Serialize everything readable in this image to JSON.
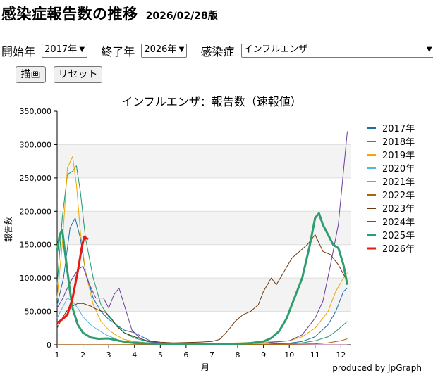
{
  "header": {
    "title": "感染症報告数の推移",
    "date": "2026/02/28版"
  },
  "controls": {
    "start_label": "開始年",
    "start_value": "2017年",
    "end_label": "終了年",
    "end_value": "2026年",
    "disease_label": "感染症",
    "disease_value": "インフルエンザ",
    "draw_button": "描画",
    "reset_button": "リセット"
  },
  "footer": {
    "credit": "produced by JpGraph"
  },
  "colors": {
    "band": "#f3f3f3",
    "axis": "#000000"
  },
  "chart_data": {
    "type": "line",
    "title": "インフルエンザ：報告数（速報値）",
    "xlabel": "月",
    "ylabel": "報告数",
    "xlim": [
      1,
      12.4
    ],
    "ylim": [
      0,
      350000
    ],
    "x_ticks": [
      "1",
      "2",
      "3",
      "4",
      "5",
      "6",
      "7",
      "8",
      "9",
      "10",
      "11",
      "12"
    ],
    "y_ticks": [
      "0",
      "50,000",
      "100,000",
      "150,000",
      "200,000",
      "250,000",
      "300,000",
      "350,000"
    ],
    "grid": "alternating horizontal bands",
    "legend_position": "right",
    "series": [
      {
        "name": "2017年",
        "color": "#1a6fa8",
        "width": 1,
        "points": [
          [
            1,
            60000
          ],
          [
            1.25,
            100000
          ],
          [
            1.5,
            175000
          ],
          [
            1.7,
            190000
          ],
          [
            1.9,
            160000
          ],
          [
            2.1,
            110000
          ],
          [
            2.4,
            70000
          ],
          [
            2.7,
            50000
          ],
          [
            3,
            38000
          ],
          [
            3.3,
            30000
          ],
          [
            3.6,
            22000
          ],
          [
            4,
            18000
          ],
          [
            4.3,
            12000
          ],
          [
            4.6,
            6000
          ],
          [
            5,
            2500
          ],
          [
            6,
            1000
          ],
          [
            7,
            600
          ],
          [
            8,
            500
          ],
          [
            9,
            800
          ],
          [
            10,
            2500
          ],
          [
            10.5,
            5000
          ],
          [
            11,
            12000
          ],
          [
            11.5,
            30000
          ],
          [
            11.8,
            50000
          ],
          [
            12.1,
            80000
          ],
          [
            12.25,
            85000
          ]
        ]
      },
      {
        "name": "2018年",
        "color": "#1a9a6c",
        "width": 1,
        "points": [
          [
            1,
            90000
          ],
          [
            1.2,
            190000
          ],
          [
            1.4,
            255000
          ],
          [
            1.6,
            260000
          ],
          [
            1.75,
            268000
          ],
          [
            1.9,
            230000
          ],
          [
            2.1,
            160000
          ],
          [
            2.4,
            100000
          ],
          [
            2.7,
            60000
          ],
          [
            3,
            42000
          ],
          [
            3.3,
            30000
          ],
          [
            3.6,
            18000
          ],
          [
            4,
            10000
          ],
          [
            4.5,
            5000
          ],
          [
            5,
            2500
          ],
          [
            6,
            1000
          ],
          [
            7,
            600
          ],
          [
            8,
            500
          ],
          [
            9,
            600
          ],
          [
            10,
            1500
          ],
          [
            10.5,
            3000
          ],
          [
            11,
            6000
          ],
          [
            11.5,
            12000
          ],
          [
            11.8,
            20000
          ],
          [
            12.25,
            35000
          ]
        ]
      },
      {
        "name": "2019年",
        "color": "#f0a500",
        "width": 1,
        "points": [
          [
            1,
            70000
          ],
          [
            1.2,
            150000
          ],
          [
            1.4,
            265000
          ],
          [
            1.6,
            282000
          ],
          [
            1.75,
            240000
          ],
          [
            1.9,
            170000
          ],
          [
            2.1,
            110000
          ],
          [
            2.4,
            60000
          ],
          [
            2.7,
            35000
          ],
          [
            3,
            22000
          ],
          [
            3.3,
            14000
          ],
          [
            3.6,
            8000
          ],
          [
            4,
            5000
          ],
          [
            4.5,
            3000
          ],
          [
            5,
            2000
          ],
          [
            6,
            1500
          ],
          [
            7,
            1500
          ],
          [
            8,
            3000
          ],
          [
            9,
            4000
          ],
          [
            10,
            6000
          ],
          [
            10.5,
            12000
          ],
          [
            11,
            25000
          ],
          [
            11.5,
            50000
          ],
          [
            11.8,
            80000
          ],
          [
            12.1,
            100000
          ],
          [
            12.25,
            108000
          ]
        ]
      },
      {
        "name": "2020年",
        "color": "#56b4e9",
        "width": 1,
        "points": [
          [
            1,
            40000
          ],
          [
            1.2,
            55000
          ],
          [
            1.4,
            70000
          ],
          [
            1.6,
            65000
          ],
          [
            1.8,
            55000
          ],
          [
            2,
            42000
          ],
          [
            2.3,
            30000
          ],
          [
            2.6,
            22000
          ],
          [
            2.9,
            15000
          ],
          [
            3.2,
            10000
          ],
          [
            3.5,
            5000
          ],
          [
            4,
            1500
          ],
          [
            4.5,
            400
          ],
          [
            5,
            150
          ],
          [
            6,
            100
          ],
          [
            7,
            100
          ],
          [
            8,
            100
          ],
          [
            9,
            100
          ],
          [
            10,
            100
          ],
          [
            11,
            100
          ],
          [
            12,
            100
          ],
          [
            12.25,
            100
          ]
        ]
      },
      {
        "name": "2021年",
        "color": "#cc79a7",
        "width": 1,
        "points": [
          [
            1,
            200
          ],
          [
            2,
            150
          ],
          [
            3,
            120
          ],
          [
            4,
            100
          ],
          [
            5,
            80
          ],
          [
            6,
            80
          ],
          [
            7,
            80
          ],
          [
            8,
            80
          ],
          [
            9,
            80
          ],
          [
            10,
            80
          ],
          [
            11,
            80
          ],
          [
            12,
            80
          ],
          [
            12.25,
            80
          ]
        ]
      },
      {
        "name": "2022年",
        "color": "#a8650a",
        "width": 1,
        "points": [
          [
            1,
            150
          ],
          [
            2,
            150
          ],
          [
            3,
            150
          ],
          [
            4,
            200
          ],
          [
            5,
            200
          ],
          [
            6,
            300
          ],
          [
            7,
            400
          ],
          [
            8,
            500
          ],
          [
            9,
            500
          ],
          [
            10,
            800
          ],
          [
            11,
            1500
          ],
          [
            11.5,
            3000
          ],
          [
            12,
            6000
          ],
          [
            12.25,
            9000
          ]
        ]
      },
      {
        "name": "2023年",
        "color": "#6b3a0e",
        "width": 1,
        "points": [
          [
            1,
            25000
          ],
          [
            1.2,
            40000
          ],
          [
            1.4,
            52000
          ],
          [
            1.6,
            58000
          ],
          [
            1.8,
            62000
          ],
          [
            2,
            62000
          ],
          [
            2.3,
            58000
          ],
          [
            2.6,
            52000
          ],
          [
            2.9,
            48000
          ],
          [
            3.1,
            40000
          ],
          [
            3.3,
            28000
          ],
          [
            3.6,
            18000
          ],
          [
            4,
            12000
          ],
          [
            4.5,
            6000
          ],
          [
            5,
            4000
          ],
          [
            5.5,
            3000
          ],
          [
            6,
            3500
          ],
          [
            6.5,
            4000
          ],
          [
            7,
            5000
          ],
          [
            7.3,
            8000
          ],
          [
            7.6,
            20000
          ],
          [
            7.9,
            35000
          ],
          [
            8.2,
            45000
          ],
          [
            8.5,
            50000
          ],
          [
            8.8,
            60000
          ],
          [
            9,
            80000
          ],
          [
            9.3,
            100000
          ],
          [
            9.5,
            90000
          ],
          [
            9.8,
            110000
          ],
          [
            10.1,
            130000
          ],
          [
            10.4,
            140000
          ],
          [
            10.7,
            150000
          ],
          [
            11,
            165000
          ],
          [
            11.3,
            140000
          ],
          [
            11.6,
            135000
          ],
          [
            11.9,
            120000
          ],
          [
            12.25,
            95000
          ]
        ]
      },
      {
        "name": "2024年",
        "color": "#6a3d9a",
        "width": 1,
        "points": [
          [
            1,
            55000
          ],
          [
            1.2,
            68000
          ],
          [
            1.4,
            85000
          ],
          [
            1.6,
            100000
          ],
          [
            1.8,
            112000
          ],
          [
            2,
            118000
          ],
          [
            2.2,
            95000
          ],
          [
            2.5,
            70000
          ],
          [
            2.8,
            70000
          ],
          [
            3,
            55000
          ],
          [
            3.2,
            75000
          ],
          [
            3.4,
            85000
          ],
          [
            3.6,
            60000
          ],
          [
            3.9,
            22000
          ],
          [
            4.2,
            10000
          ],
          [
            4.5,
            5000
          ],
          [
            5,
            2500
          ],
          [
            6,
            1500
          ],
          [
            7,
            1200
          ],
          [
            8,
            1500
          ],
          [
            9,
            2500
          ],
          [
            10,
            6000
          ],
          [
            10.5,
            15000
          ],
          [
            11,
            40000
          ],
          [
            11.3,
            65000
          ],
          [
            11.6,
            120000
          ],
          [
            11.9,
            180000
          ],
          [
            12.1,
            260000
          ],
          [
            12.25,
            320000
          ]
        ]
      },
      {
        "name": "2025年",
        "color": "#2e9e6f",
        "width": 3,
        "points": [
          [
            1,
            140000
          ],
          [
            1.1,
            165000
          ],
          [
            1.2,
            172000
          ],
          [
            1.3,
            140000
          ],
          [
            1.4,
            110000
          ],
          [
            1.5,
            80000
          ],
          [
            1.6,
            55000
          ],
          [
            1.8,
            30000
          ],
          [
            2,
            18000
          ],
          [
            2.3,
            11000
          ],
          [
            2.6,
            9000
          ],
          [
            3,
            9500
          ],
          [
            3.4,
            6000
          ],
          [
            3.8,
            3500
          ],
          [
            4.2,
            2500
          ],
          [
            5,
            1500
          ],
          [
            6,
            1000
          ],
          [
            7,
            900
          ],
          [
            8,
            1500
          ],
          [
            8.5,
            2500
          ],
          [
            9,
            5000
          ],
          [
            9.3,
            10000
          ],
          [
            9.6,
            20000
          ],
          [
            9.9,
            40000
          ],
          [
            10.2,
            70000
          ],
          [
            10.5,
            100000
          ],
          [
            10.8,
            150000
          ],
          [
            11,
            190000
          ],
          [
            11.15,
            197000
          ],
          [
            11.3,
            180000
          ],
          [
            11.5,
            165000
          ],
          [
            11.7,
            150000
          ],
          [
            11.9,
            145000
          ],
          [
            12.1,
            120000
          ],
          [
            12.25,
            90000
          ]
        ]
      },
      {
        "name": "2026年",
        "color": "#e8190f",
        "width": 3,
        "points": [
          [
            1,
            33000
          ],
          [
            1.2,
            38000
          ],
          [
            1.4,
            45000
          ],
          [
            1.6,
            70000
          ],
          [
            1.8,
            110000
          ],
          [
            1.95,
            145000
          ],
          [
            2.05,
            162000
          ],
          [
            2.2,
            158000
          ]
        ]
      }
    ]
  }
}
